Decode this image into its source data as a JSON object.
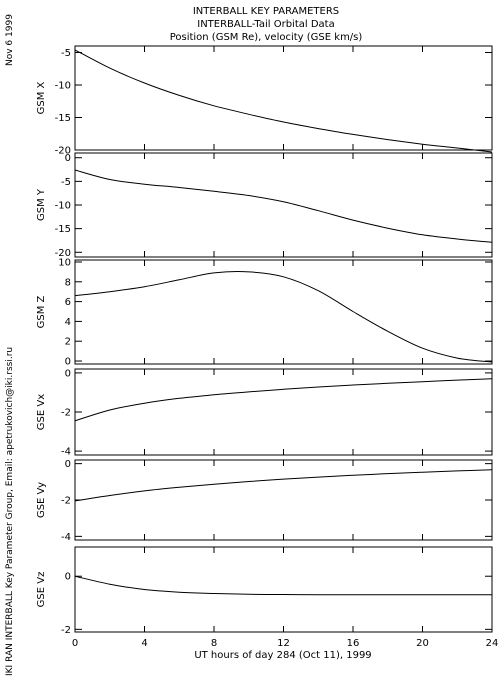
{
  "header": {
    "title1": "INTERBALL KEY PARAMETERS",
    "title2": "INTERBALL-Tail Orbital Data",
    "title3": "Position (GSM Re), velocity (GSE km/s)"
  },
  "side_date": "Nov  6 1999",
  "side_credit": "IKI RAN INTERBALL Key Parameter Group, Email: apetrukovich@iki.rssi.ru",
  "chart_data": [
    {
      "type": "line",
      "ylabel": "GSM X",
      "ylim": [
        -20,
        -4
      ],
      "yticks": [
        -20,
        -15,
        -10,
        -5
      ],
      "x": [
        0,
        2,
        4,
        6,
        8,
        10,
        12,
        14,
        16,
        18,
        20,
        22,
        24
      ],
      "values": [
        -4.6,
        -7.4,
        -9.7,
        -11.6,
        -13.2,
        -14.5,
        -15.7,
        -16.7,
        -17.6,
        -18.4,
        -19.1,
        -19.7,
        -20.3
      ]
    },
    {
      "type": "line",
      "ylabel": "GSM Y",
      "ylim": [
        -21,
        1
      ],
      "yticks": [
        -20,
        -15,
        -10,
        -5,
        0
      ],
      "x": [
        0,
        2,
        4,
        6,
        8,
        10,
        12,
        14,
        16,
        18,
        20,
        22,
        24
      ],
      "values": [
        -2.6,
        -4.6,
        -5.6,
        -6.3,
        -7.1,
        -8.0,
        -9.3,
        -11.2,
        -13.2,
        -14.9,
        -16.3,
        -17.2,
        -17.9
      ]
    },
    {
      "type": "line",
      "ylabel": "GSM Z",
      "ylim": [
        -0.3,
        10.2
      ],
      "yticks": [
        0,
        2,
        4,
        6,
        8,
        10
      ],
      "x": [
        0,
        2,
        4,
        6,
        8,
        10,
        12,
        14,
        16,
        18,
        20,
        22,
        24
      ],
      "values": [
        6.6,
        7.0,
        7.5,
        8.2,
        8.9,
        9.0,
        8.5,
        7.1,
        5.0,
        3.0,
        1.3,
        0.3,
        -0.1
      ]
    },
    {
      "type": "line",
      "ylabel": "GSE Vx",
      "ylim": [
        -4.2,
        0.2
      ],
      "yticks": [
        -4,
        -2,
        0
      ],
      "x": [
        0,
        2,
        4,
        6,
        8,
        10,
        12,
        14,
        16,
        18,
        20,
        22,
        24
      ],
      "values": [
        -2.45,
        -1.9,
        -1.55,
        -1.3,
        -1.12,
        -0.97,
        -0.84,
        -0.72,
        -0.62,
        -0.53,
        -0.45,
        -0.37,
        -0.3
      ]
    },
    {
      "type": "line",
      "ylabel": "GSE Vy",
      "ylim": [
        -4.2,
        0.2
      ],
      "yticks": [
        -4,
        -2,
        0
      ],
      "x": [
        0,
        2,
        4,
        6,
        8,
        10,
        12,
        14,
        16,
        18,
        20,
        22,
        24
      ],
      "values": [
        -2.05,
        -1.75,
        -1.5,
        -1.3,
        -1.13,
        -0.98,
        -0.85,
        -0.74,
        -0.64,
        -0.55,
        -0.47,
        -0.4,
        -0.34
      ]
    },
    {
      "type": "line",
      "ylabel": "GSE Vz",
      "ylim": [
        -2.1,
        1.1
      ],
      "yticks": [
        -2,
        0
      ],
      "x": [
        0,
        2,
        4,
        6,
        8,
        10,
        12,
        14,
        16,
        18,
        20,
        22,
        24
      ],
      "values": [
        0.0,
        -0.3,
        -0.5,
        -0.6,
        -0.65,
        -0.68,
        -0.69,
        -0.7,
        -0.7,
        -0.7,
        -0.7,
        -0.7,
        -0.7
      ]
    }
  ],
  "xaxis": {
    "xlim": [
      0,
      24
    ],
    "ticks": [
      0,
      4,
      8,
      12,
      16,
      20,
      24
    ],
    "tick_labels": [
      "0",
      "4",
      "8",
      "12",
      "16",
      "20",
      "24"
    ],
    "label": "UT hours of day 284 (Oct 11), 1999"
  }
}
